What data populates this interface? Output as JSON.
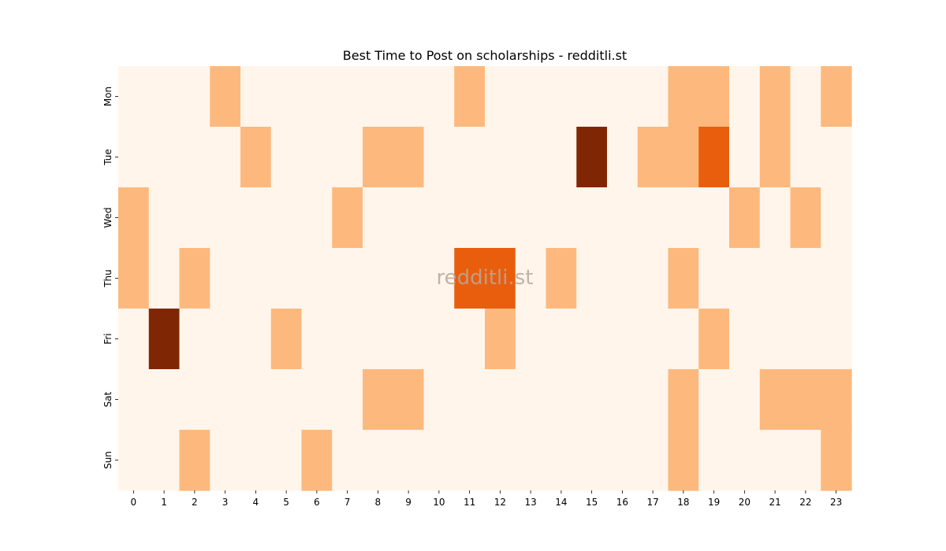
{
  "chart_data": {
    "type": "heatmap",
    "title": "Best Time to Post on scholarships - redditli.st",
    "watermark": "redditli.st",
    "x_labels": [
      "0",
      "1",
      "2",
      "3",
      "4",
      "5",
      "6",
      "7",
      "8",
      "9",
      "10",
      "11",
      "12",
      "13",
      "14",
      "15",
      "16",
      "17",
      "18",
      "19",
      "20",
      "21",
      "22",
      "23"
    ],
    "y_labels": [
      "Mon",
      "Tue",
      "Wed",
      "Thu",
      "Fri",
      "Sat",
      "Sun"
    ],
    "values": [
      [
        0,
        0,
        0,
        1,
        0,
        0,
        0,
        0,
        0,
        0,
        0,
        1,
        0,
        0,
        0,
        0,
        0,
        0,
        1,
        1,
        0,
        1,
        0,
        1
      ],
      [
        0,
        0,
        0,
        0,
        1,
        0,
        0,
        0,
        1,
        1,
        0,
        0,
        0,
        0,
        0,
        3,
        0,
        1,
        1,
        2,
        0,
        1,
        0,
        0
      ],
      [
        1,
        0,
        0,
        0,
        0,
        0,
        0,
        1,
        0,
        0,
        0,
        0,
        0,
        0,
        0,
        0,
        0,
        0,
        0,
        0,
        1,
        0,
        1,
        0
      ],
      [
        1,
        0,
        1,
        0,
        0,
        0,
        0,
        0,
        0,
        0,
        0,
        2,
        2,
        0,
        1,
        0,
        0,
        0,
        1,
        0,
        0,
        0,
        0,
        0
      ],
      [
        0,
        3,
        0,
        0,
        0,
        1,
        0,
        0,
        0,
        0,
        0,
        0,
        1,
        0,
        0,
        0,
        0,
        0,
        0,
        1,
        0,
        0,
        0,
        0
      ],
      [
        0,
        0,
        0,
        0,
        0,
        0,
        0,
        0,
        1,
        1,
        0,
        0,
        0,
        0,
        0,
        0,
        0,
        0,
        1,
        0,
        0,
        1,
        1,
        1
      ],
      [
        0,
        0,
        1,
        0,
        0,
        0,
        1,
        0,
        0,
        0,
        0,
        0,
        0,
        0,
        0,
        0,
        0,
        0,
        1,
        0,
        0,
        0,
        0,
        1
      ]
    ],
    "value_range": [
      0,
      3
    ],
    "colormap": [
      "#fff5eb",
      "#fdb97d",
      "#e95e0d",
      "#7f2704"
    ],
    "colorbar": false,
    "grid": false
  }
}
